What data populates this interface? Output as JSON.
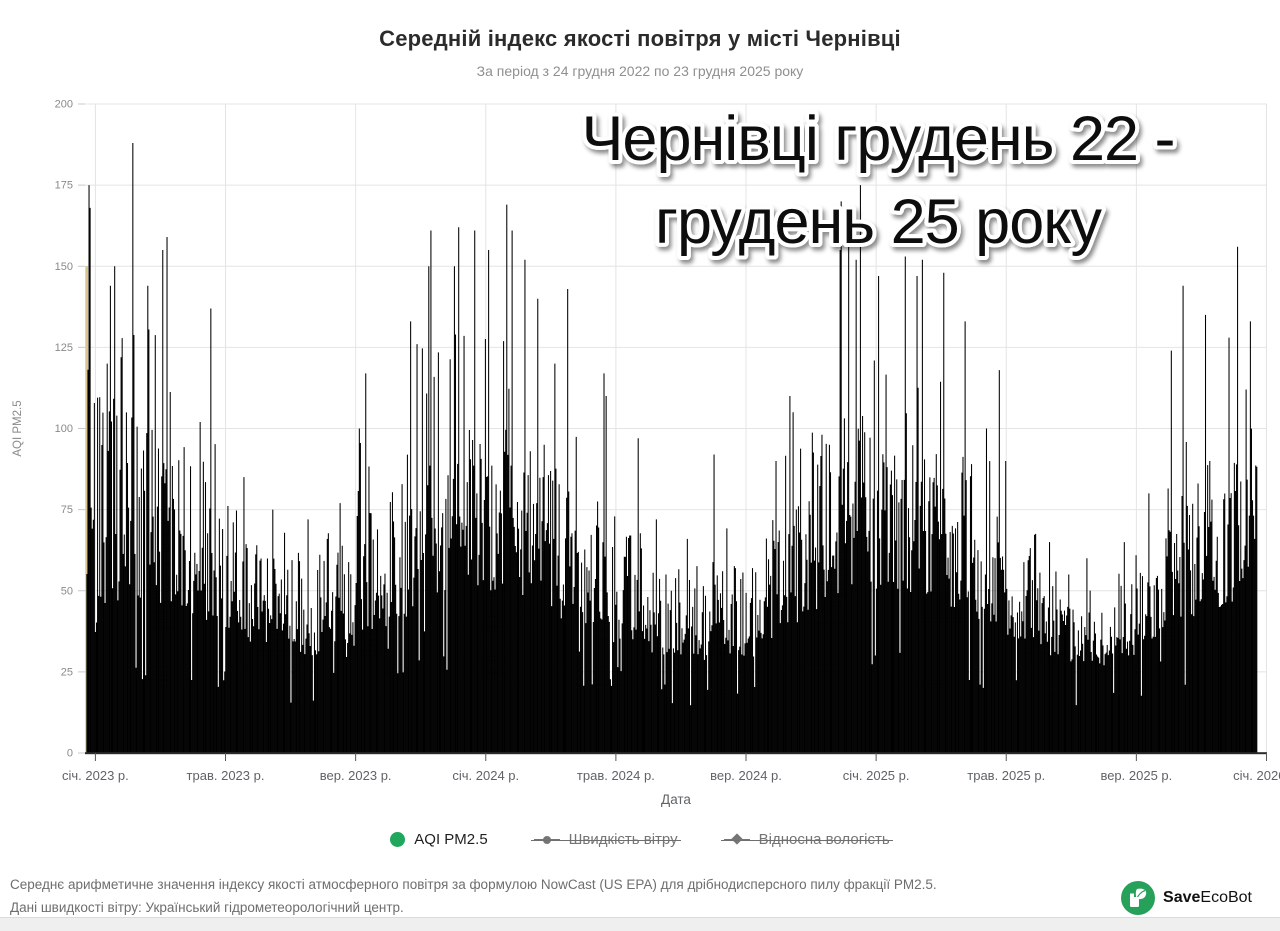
{
  "header": {
    "title": "Середній індекс якості повітря у місті Чернівці",
    "subtitle": "За період з 24 грудня 2022 по 23 грудня 2025 року"
  },
  "overlay": {
    "line1": "Чернівці грудень 22 -",
    "line2": "грудень 25 року"
  },
  "chart_data": {
    "type": "bar",
    "title": "Середній індекс якості повітря у місті Чернівці",
    "subtitle": "За період з 24 грудня 2022 по 23 грудня 2025 року",
    "xlabel": "Дата",
    "ylabel": "AQI PM2.5",
    "ylim": [
      0,
      200
    ],
    "y_ticks": [
      0,
      25,
      50,
      75,
      100,
      125,
      150,
      175,
      200
    ],
    "x_tick_labels": [
      "січ. 2023 р.",
      "трав. 2023 р.",
      "вер. 2023 р.",
      "січ. 2024 р.",
      "трав. 2024 р.",
      "вер. 2024 р.",
      "січ. 2025 р.",
      "трав. 2025 р.",
      "вер. 2025 р.",
      "січ. 2026 р."
    ],
    "grid": true,
    "legend_position": "bottom",
    "bar_color": "#000000",
    "first_bar_color": "#d8c48c",
    "first_bar_value": 150,
    "period_start": "24 грудня 2022",
    "period_end": "23 грудня 2025",
    "seed": 20221224,
    "monthly_envelope": [
      {
        "m": "2022-12",
        "days": 8,
        "lo": 55,
        "hi": 130,
        "peaks": [
          175,
          168
        ]
      },
      {
        "m": "2023-01",
        "days": 31,
        "lo": 45,
        "hi": 110,
        "peaks": [
          150,
          144,
          120
        ]
      },
      {
        "m": "2023-02",
        "days": 28,
        "lo": 45,
        "hi": 100,
        "peaks": [
          188,
          144
        ]
      },
      {
        "m": "2023-03",
        "days": 31,
        "lo": 45,
        "hi": 95,
        "peaks": [
          159,
          155
        ]
      },
      {
        "m": "2023-04",
        "days": 30,
        "lo": 40,
        "hi": 85,
        "peaks": [
          137,
          102
        ]
      },
      {
        "m": "2023-05",
        "days": 31,
        "lo": 38,
        "hi": 72,
        "peaks": [
          85
        ]
      },
      {
        "m": "2023-06",
        "days": 30,
        "lo": 33,
        "hi": 62,
        "peaks": [
          75
        ]
      },
      {
        "m": "2023-07",
        "days": 31,
        "lo": 30,
        "hi": 58,
        "peaks": [
          72
        ]
      },
      {
        "m": "2023-08",
        "days": 31,
        "lo": 33,
        "hi": 64,
        "peaks": [
          77
        ]
      },
      {
        "m": "2023-09",
        "days": 30,
        "lo": 38,
        "hi": 75,
        "peaks": [
          117,
          100
        ]
      },
      {
        "m": "2023-10",
        "days": 31,
        "lo": 42,
        "hi": 85,
        "peaks": [
          133,
          126
        ]
      },
      {
        "m": "2023-11",
        "days": 30,
        "lo": 48,
        "hi": 95,
        "peaks": [
          161,
          150
        ]
      },
      {
        "m": "2023-12",
        "days": 31,
        "lo": 50,
        "hi": 100,
        "peaks": [
          162,
          161,
          150
        ]
      },
      {
        "m": "2024-01",
        "days": 31,
        "lo": 50,
        "hi": 105,
        "peaks": [
          169,
          161,
          155
        ]
      },
      {
        "m": "2024-02",
        "days": 29,
        "lo": 48,
        "hi": 95,
        "peaks": [
          152,
          140
        ]
      },
      {
        "m": "2024-03",
        "days": 31,
        "lo": 45,
        "hi": 88,
        "peaks": [
          143,
          120
        ]
      },
      {
        "m": "2024-04",
        "days": 30,
        "lo": 40,
        "hi": 78,
        "peaks": [
          117,
          110
        ]
      },
      {
        "m": "2024-05",
        "days": 31,
        "lo": 35,
        "hi": 70,
        "peaks": [
          97
        ]
      },
      {
        "m": "2024-06",
        "days": 30,
        "lo": 30,
        "hi": 56,
        "peaks": [
          72
        ]
      },
      {
        "m": "2024-07",
        "days": 31,
        "lo": 28,
        "hi": 52,
        "peaks": [
          66
        ]
      },
      {
        "m": "2024-08",
        "days": 31,
        "lo": 30,
        "hi": 58,
        "peaks": [
          92
        ]
      },
      {
        "m": "2024-09",
        "days": 30,
        "lo": 35,
        "hi": 68,
        "peaks": [
          90
        ]
      },
      {
        "m": "2024-10",
        "days": 31,
        "lo": 40,
        "hi": 80,
        "peaks": [
          110,
          105
        ]
      },
      {
        "m": "2024-11",
        "days": 30,
        "lo": 48,
        "hi": 100,
        "peaks": [
          170,
          155
        ]
      },
      {
        "m": "2024-12",
        "days": 31,
        "lo": 52,
        "hi": 105,
        "peaks": [
          175,
          163,
          152
        ]
      },
      {
        "m": "2025-01",
        "days": 31,
        "lo": 50,
        "hi": 100,
        "peaks": [
          153,
          147
        ]
      },
      {
        "m": "2025-02",
        "days": 28,
        "lo": 48,
        "hi": 95,
        "peaks": [
          152,
          147
        ]
      },
      {
        "m": "2025-03",
        "days": 31,
        "lo": 45,
        "hi": 90,
        "peaks": [
          148,
          133
        ]
      },
      {
        "m": "2025-04",
        "days": 30,
        "lo": 40,
        "hi": 80,
        "peaks": [
          118,
          100
        ]
      },
      {
        "m": "2025-05",
        "days": 31,
        "lo": 35,
        "hi": 68,
        "peaks": [
          90
        ]
      },
      {
        "m": "2025-06",
        "days": 30,
        "lo": 30,
        "hi": 55,
        "peaks": [
          65
        ]
      },
      {
        "m": "2025-07",
        "days": 31,
        "lo": 27,
        "hi": 50,
        "peaks": [
          60
        ]
      },
      {
        "m": "2025-08",
        "days": 31,
        "lo": 30,
        "hi": 55,
        "peaks": [
          65
        ]
      },
      {
        "m": "2025-09",
        "days": 30,
        "lo": 35,
        "hi": 68,
        "peaks": [
          80
        ]
      },
      {
        "m": "2025-10",
        "days": 31,
        "lo": 42,
        "hi": 85,
        "peaks": [
          144,
          124
        ]
      },
      {
        "m": "2025-11",
        "days": 30,
        "lo": 45,
        "hi": 90,
        "peaks": [
          135,
          128
        ]
      },
      {
        "m": "2025-12",
        "days": 23,
        "lo": 48,
        "hi": 100,
        "peaks": [
          156,
          133
        ]
      }
    ]
  },
  "legend": [
    {
      "label": "AQI PM2.5",
      "marker": "circle-filled",
      "color": "#1fa75c",
      "active": true
    },
    {
      "label": "Швидкість вітру",
      "marker": "line-circle",
      "color": "#757575",
      "active": false
    },
    {
      "label": "Відносна вологість",
      "marker": "line-diamond",
      "color": "#757575",
      "active": false
    }
  ],
  "footer": {
    "line1": "Середнє арифметичне значення індексу якості атмосферного повітря за формулою NowCast (US EPA) для дрібнодисперсного пилу фракції PM2.5.",
    "line2": "Дані швидкості вітру: Український гідрометеорологічний центр."
  },
  "logo": {
    "bold": "Save",
    "rest": "EcoBot",
    "color": "#27a05a"
  }
}
